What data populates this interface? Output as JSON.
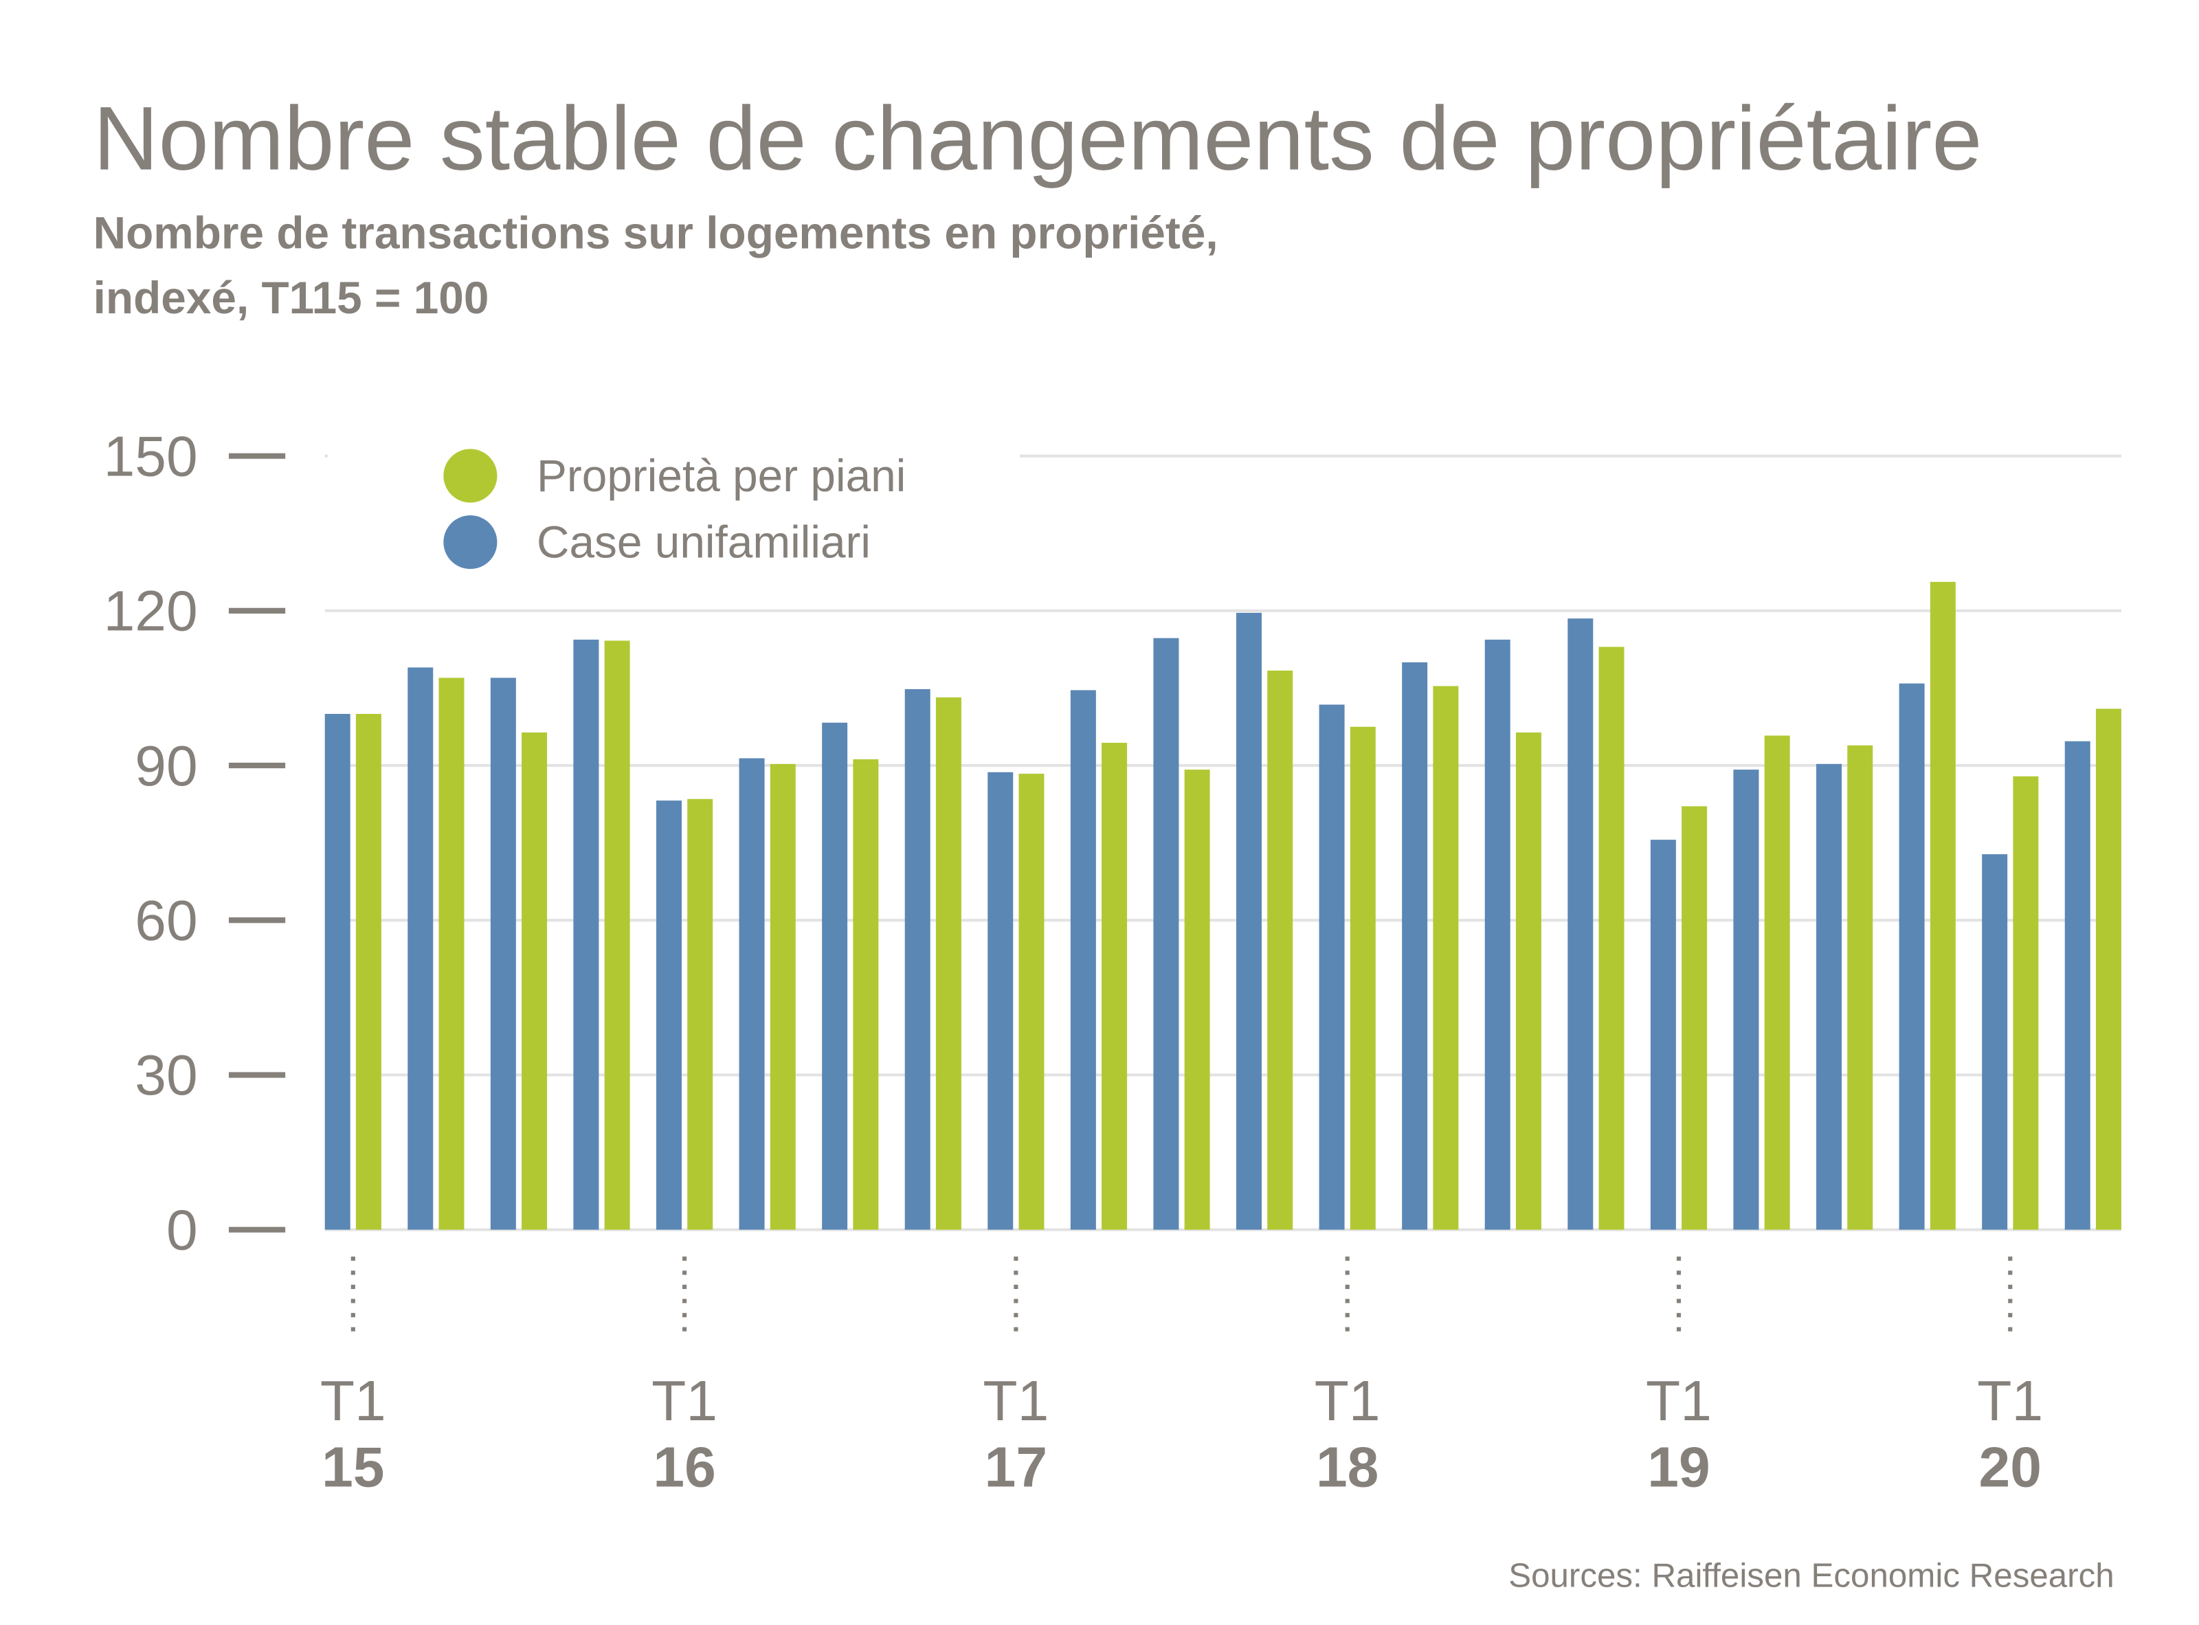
{
  "chart_data": {
    "type": "bar",
    "title": "Nombre stable de changements de propriétaire",
    "subtitle": [
      "Nombre de transactions sur logements en propriété,",
      "indexé, T115 = 100"
    ],
    "source": "Sources: Raiffeisen Economic Research",
    "categories": [
      {
        "quarter": "T1",
        "year": "15"
      },
      null,
      null,
      null,
      {
        "quarter": "T1",
        "year": "16"
      },
      null,
      null,
      null,
      {
        "quarter": "T1",
        "year": "17"
      },
      null,
      null,
      null,
      {
        "quarter": "T1",
        "year": "18"
      },
      null,
      null,
      null,
      {
        "quarter": "T1",
        "year": "19"
      },
      null,
      null,
      null,
      {
        "quarter": "T1",
        "year": "20"
      },
      null
    ],
    "series": [
      {
        "name": "Proprietà per piani",
        "color": "#b2c833",
        "values": [
          100,
          107,
          96.4,
          114.2,
          83.5,
          90.3,
          91.2,
          103.2,
          88.4,
          94.4,
          89.2,
          108.4,
          97.5,
          105.4,
          96.4,
          113,
          82.1,
          95.8,
          93.9,
          125.6,
          87.9,
          101
        ]
      },
      {
        "name": "Case unifamiliari",
        "color": "#5b87b5",
        "values": [
          100,
          109,
          107,
          114.4,
          83.2,
          91.4,
          98.3,
          104.8,
          88.7,
          104.6,
          114.7,
          119.6,
          101.8,
          110,
          114.4,
          118.5,
          75.6,
          89.2,
          90.3,
          105.9,
          72.8,
          94.7
        ]
      }
    ],
    "ylim": [
      0,
      150
    ],
    "yticks": [
      0,
      30,
      60,
      90,
      120,
      150
    ],
    "grid": true,
    "legend": "top-left"
  }
}
